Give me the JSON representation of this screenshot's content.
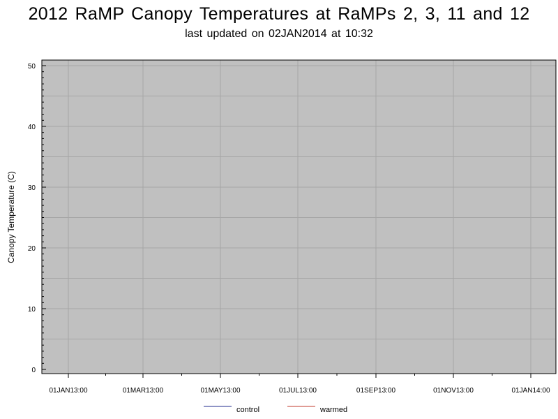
{
  "chart_data": {
    "type": "line",
    "title": "2012 RaMP Canopy Temperatures at RaMPs 2, 3, 11 and 12",
    "subtitle": "last updated on 02JAN2014 at 10:32",
    "xlabel": "",
    "ylabel": "Canopy Temperature (C)",
    "x_ticks": [
      "01JAN13:00",
      "01MAR13:00",
      "01MAY13:00",
      "01JUL13:00",
      "01SEP13:00",
      "01NOV13:00",
      "01JAN14:00"
    ],
    "y_ticks": [
      "0",
      "10",
      "20",
      "30",
      "40",
      "50"
    ],
    "ylim": [
      0,
      50
    ],
    "grid": true,
    "plot_background": "#c0c0c0",
    "gridline_color": "#a6a6a6",
    "legend_position": "bottom",
    "series": [
      {
        "name": "control",
        "color": "#1f2a8c",
        "values": []
      },
      {
        "name": "warmed",
        "color": "#c0392b",
        "values": []
      }
    ]
  }
}
